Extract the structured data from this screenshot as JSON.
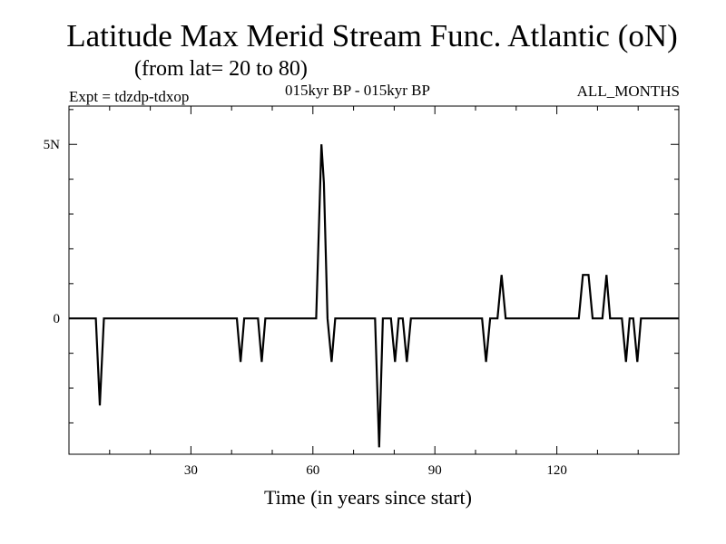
{
  "chart_data": {
    "type": "line",
    "title": "Latitude Max Merid Stream Func. Atlantic (oN)",
    "subtitle": "(from lat= 20 to 80)",
    "annotations": {
      "experiment": "Expt = tdzdp-tdxop",
      "period": "015kyr BP - 015kyr BP",
      "months": "ALL_MONTHS"
    },
    "xlabel": "Time (in years since start)",
    "ylabel": "",
    "xlim": [
      0,
      150
    ],
    "ylim": [
      -3.9,
      6.1
    ],
    "grid": false,
    "x_ticks": [
      {
        "value": 30,
        "label": "30"
      },
      {
        "value": 60,
        "label": "60"
      },
      {
        "value": 90,
        "label": "90"
      },
      {
        "value": 120,
        "label": "120"
      }
    ],
    "y_ticks": [
      {
        "value": 0,
        "label": "0"
      },
      {
        "value": 5,
        "label": "5N"
      }
    ],
    "series": [
      {
        "name": "",
        "color": "#000000",
        "points": [
          [
            0,
            0
          ],
          [
            6.6,
            0
          ],
          [
            7.6,
            -2.5
          ],
          [
            8.6,
            0
          ],
          [
            41.3,
            0
          ],
          [
            42.2,
            -1.25
          ],
          [
            43.1,
            0
          ],
          [
            46.5,
            0
          ],
          [
            47.4,
            -1.25
          ],
          [
            48.3,
            0
          ],
          [
            60.8,
            0
          ],
          [
            61.8,
            3.9
          ],
          [
            62.1,
            5.0
          ],
          [
            62.7,
            3.9
          ],
          [
            63.6,
            0
          ],
          [
            64.6,
            -1.25
          ],
          [
            65.5,
            0
          ],
          [
            75.3,
            0
          ],
          [
            76.3,
            -3.7
          ],
          [
            77.2,
            0
          ],
          [
            79.2,
            0
          ],
          [
            80.2,
            -1.25
          ],
          [
            81.1,
            0
          ],
          [
            82.1,
            0
          ],
          [
            83.1,
            -1.25
          ],
          [
            84.1,
            0
          ],
          [
            101.6,
            0
          ],
          [
            102.6,
            -1.25
          ],
          [
            103.6,
            0
          ],
          [
            105.4,
            0
          ],
          [
            106.4,
            1.25
          ],
          [
            107.4,
            0
          ],
          [
            125.4,
            0
          ],
          [
            126.4,
            1.25
          ],
          [
            127.8,
            1.25
          ],
          [
            128.8,
            0
          ],
          [
            131.2,
            0
          ],
          [
            132.2,
            1.25
          ],
          [
            133.1,
            0
          ],
          [
            136.0,
            0
          ],
          [
            137.0,
            -1.25
          ],
          [
            137.9,
            0
          ],
          [
            138.8,
            0
          ],
          [
            139.8,
            -1.25
          ],
          [
            140.7,
            0
          ],
          [
            150,
            0
          ]
        ]
      }
    ]
  }
}
